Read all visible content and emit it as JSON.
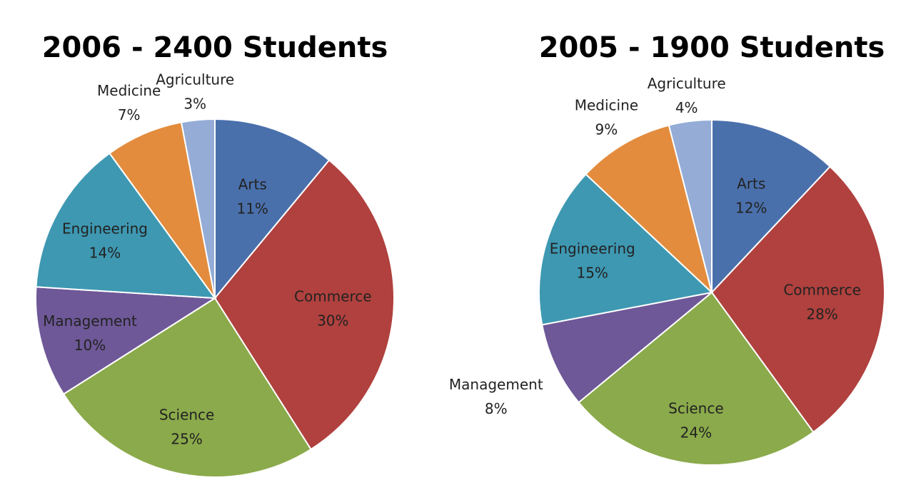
{
  "chart_data": [
    {
      "type": "pie",
      "title": "2006 - 2400 Students",
      "categories": [
        "Arts",
        "Commerce",
        "Science",
        "Management",
        "Engineering",
        "Medicine",
        "Agriculture"
      ],
      "values": [
        11,
        30,
        25,
        10,
        14,
        7,
        3
      ],
      "value_labels": [
        "11%",
        "30%",
        "25%",
        "10%",
        "14%",
        "7%",
        "3%"
      ],
      "colors": [
        "#4A70AC",
        "#B0413E",
        "#8BAA4B",
        "#6E5898",
        "#3E98B2",
        "#E38C3E",
        "#94ACD6"
      ],
      "legend": "none",
      "start_angle": "12 o'clock",
      "direction": "clockwise"
    },
    {
      "type": "pie",
      "title": "2005 - 1900 Students",
      "categories": [
        "Arts",
        "Commerce",
        "Science",
        "Management",
        "Engineering",
        "Medicine",
        "Agriculture"
      ],
      "values": [
        12,
        28,
        24,
        8,
        15,
        9,
        4
      ],
      "value_labels": [
        "12%",
        "28%",
        "24%",
        "8%",
        "15%",
        "9%",
        "4%"
      ],
      "colors": [
        "#4A70AC",
        "#B0413E",
        "#8BAA4B",
        "#6E5898",
        "#3E98B2",
        "#E38C3E",
        "#94ACD6"
      ],
      "legend": "none",
      "start_angle": "12 o'clock",
      "direction": "clockwise"
    }
  ]
}
